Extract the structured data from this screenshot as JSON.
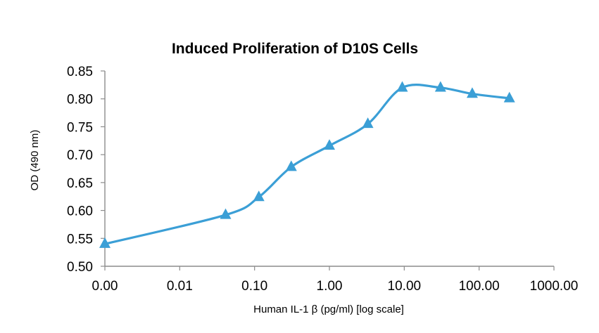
{
  "chart_data": {
    "type": "line",
    "title": "Induced Proliferation of D10S Cells",
    "xlabel": "Human IL-1 β (pg/ml) [log scale]",
    "ylabel": "OD (490 nm)",
    "x_scale": "log",
    "x_ticks": [
      "0.00",
      "0.01",
      "0.10",
      "1.00",
      "10.00",
      "100.00",
      "1000.00"
    ],
    "x_tick_values": [
      0.001,
      0.01,
      0.1,
      1,
      10,
      100,
      1000
    ],
    "y_ticks": [
      "0.85",
      "0.80",
      "0.75",
      "0.70",
      "0.65",
      "0.60",
      "0.55",
      "0.50"
    ],
    "ylim": [
      0.5,
      0.85
    ],
    "grid": false,
    "legend": "none",
    "series": [
      {
        "color": "#3b9fd6",
        "marker": "triangle",
        "smooth": true,
        "points": [
          {
            "x": 0.001,
            "y": 0.54
          },
          {
            "x": 0.041,
            "y": 0.592
          },
          {
            "x": 0.114,
            "y": 0.624
          },
          {
            "x": 0.309,
            "y": 0.678
          },
          {
            "x": 1.0,
            "y": 0.716
          },
          {
            "x": 3.26,
            "y": 0.755
          },
          {
            "x": 9.4,
            "y": 0.82
          },
          {
            "x": 30.5,
            "y": 0.82
          },
          {
            "x": 81.0,
            "y": 0.809
          },
          {
            "x": 254.0,
            "y": 0.801
          }
        ]
      }
    ]
  }
}
